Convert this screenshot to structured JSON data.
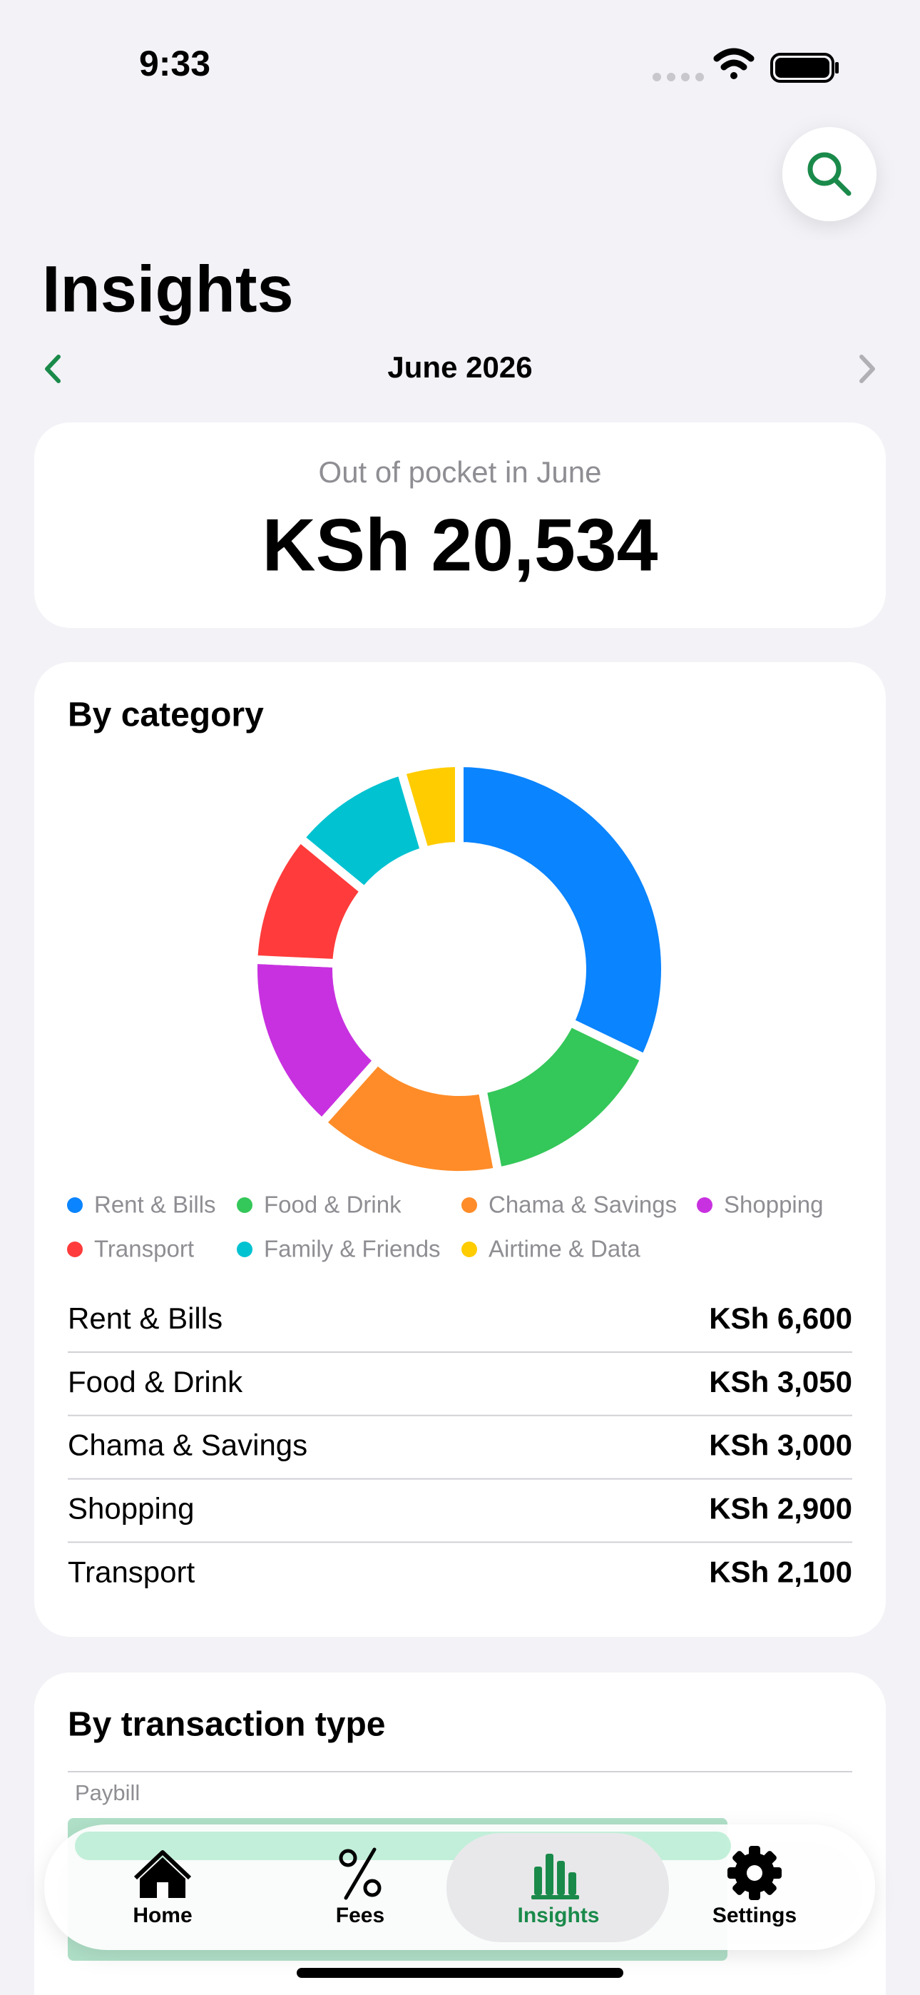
{
  "status_bar": {
    "time": "9:33"
  },
  "header": {
    "title": "Insights",
    "month": "June 2026"
  },
  "summary": {
    "label": "Out of pocket in June",
    "amount": "KSh 20,534"
  },
  "chart_data": {
    "type": "donut",
    "title": "By category",
    "categories": [
      "Rent & Bills",
      "Food & Drink",
      "Chama & Savings",
      "Shopping",
      "Transport",
      "Family & Friends",
      "Airtime & Data"
    ],
    "values": [
      6600,
      3050,
      3000,
      2900,
      2100,
      1950,
      934
    ],
    "colors": [
      "#0a84ff",
      "#34c759",
      "#ff8c28",
      "#c831e0",
      "#ff3b3b",
      "#00c2d1",
      "#ffcc00"
    ]
  },
  "category_list": [
    {
      "name": "Rent & Bills",
      "amount": "KSh 6,600"
    },
    {
      "name": "Food & Drink",
      "amount": "KSh 3,050"
    },
    {
      "name": "Chama & Savings",
      "amount": "KSh 3,000"
    },
    {
      "name": "Shopping",
      "amount": "KSh 2,900"
    },
    {
      "name": "Transport",
      "amount": "KSh 2,100"
    }
  ],
  "transaction_type": {
    "title": "By transaction type",
    "rows": [
      "Paybill"
    ]
  },
  "tab_bar": {
    "tabs": [
      "Home",
      "Fees",
      "Insights",
      "Settings"
    ],
    "active": 2
  }
}
